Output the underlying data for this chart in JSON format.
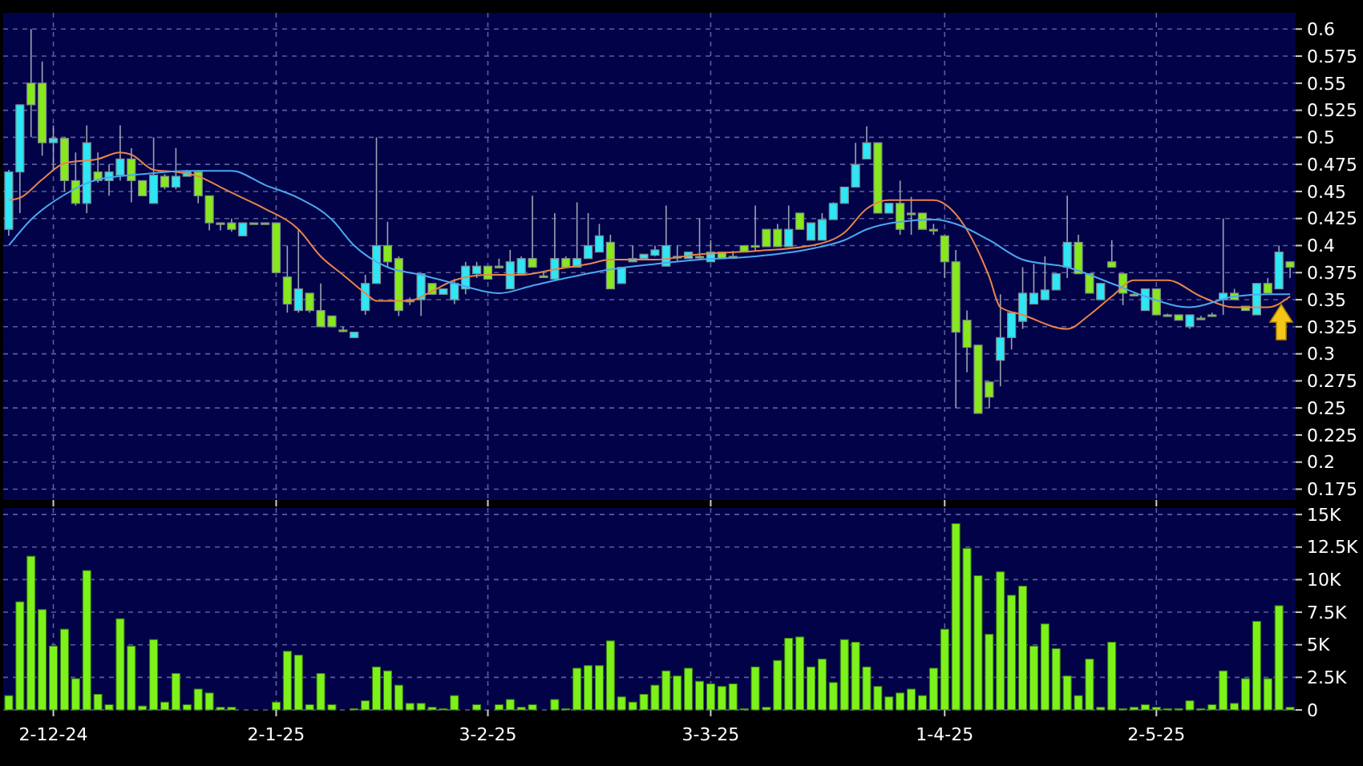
{
  "chart_data": [
    {
      "type": "candlestick",
      "tick_labels": "y",
      "grid": true,
      "categories": [
        null,
        null,
        null,
        null,
        null,
        null,
        null,
        null,
        null,
        null,
        null,
        null,
        null,
        null,
        null,
        null,
        null,
        null,
        null,
        null,
        null,
        null,
        null,
        null,
        null,
        null,
        null,
        null,
        null,
        null,
        null,
        null,
        null,
        null,
        null,
        null,
        null,
        null,
        null,
        null,
        null,
        null,
        null,
        null,
        null,
        null,
        null,
        null,
        null,
        null,
        null,
        null,
        null,
        null,
        null,
        null,
        null,
        null,
        null,
        null,
        null,
        null,
        null,
        null,
        null,
        null,
        null,
        null,
        null,
        null,
        null,
        null,
        null,
        null,
        null,
        null,
        null,
        null,
        null,
        null,
        null,
        null,
        null,
        null,
        null,
        null,
        null,
        null,
        null,
        null,
        null,
        null,
        null,
        null,
        null,
        null,
        null,
        null,
        null,
        null,
        null,
        null,
        null,
        null,
        null,
        null,
        null,
        null,
        null,
        null,
        null,
        null,
        null,
        null,
        null,
        null
      ],
      "ylim": [
        0.165,
        0.615
      ],
      "yticks": [
        0.175,
        0.2,
        0.225,
        0.25,
        0.275,
        0.3,
        0.325,
        0.35,
        0.375,
        0.4,
        0.425,
        0.45,
        0.475,
        0.5,
        0.525,
        0.55,
        0.575,
        0.6
      ],
      "series": [
        {
          "type": "candlestick",
          "ohlc": [
            [
              0.415,
              0.47,
              0.409,
              0.468
            ],
            [
              0.468,
              0.53,
              0.43,
              0.53
            ],
            [
              0.55,
              0.6,
              0.5,
              0.53
            ],
            [
              0.55,
              0.57,
              0.483,
              0.495
            ],
            [
              0.495,
              0.511,
              0.47,
              0.499
            ],
            [
              0.499,
              0.5,
              0.45,
              0.46
            ],
            [
              0.46,
              0.486,
              0.437,
              0.439
            ],
            [
              0.439,
              0.511,
              0.43,
              0.495
            ],
            [
              0.468,
              0.486,
              0.458,
              0.46
            ],
            [
              0.46,
              0.475,
              0.446,
              0.468
            ],
            [
              0.465,
              0.511,
              0.46,
              0.48
            ],
            [
              0.48,
              0.49,
              0.44,
              0.46
            ],
            [
              0.46,
              0.46,
              0.446,
              0.446
            ],
            [
              0.439,
              0.5,
              0.439,
              0.465
            ],
            [
              0.464,
              0.466,
              0.452,
              0.454
            ],
            [
              0.454,
              0.49,
              0.452,
              0.464
            ],
            [
              0.464,
              0.47,
              0.464,
              0.468
            ],
            [
              0.468,
              0.47,
              0.439,
              0.446
            ],
            [
              0.446,
              0.446,
              0.414,
              0.421
            ],
            [
              0.421,
              0.421,
              0.414,
              0.421
            ],
            [
              0.421,
              0.425,
              0.413,
              0.415
            ],
            [
              0.409,
              0.421,
              0.409,
              0.421
            ],
            [
              0.421,
              0.421,
              0.421,
              0.421
            ],
            [
              0.421,
              0.421,
              0.421,
              0.421
            ],
            [
              0.421,
              0.421,
              0.375,
              0.375
            ],
            [
              0.371,
              0.4,
              0.338,
              0.346
            ],
            [
              0.34,
              0.415,
              0.338,
              0.36
            ],
            [
              0.356,
              0.356,
              0.338,
              0.34
            ],
            [
              0.34,
              0.365,
              0.325,
              0.325
            ],
            [
              0.335,
              0.335,
              0.325,
              0.325
            ],
            [
              0.322,
              0.325,
              0.32,
              0.322
            ],
            [
              0.315,
              0.32,
              0.315,
              0.32
            ],
            [
              0.34,
              0.373,
              0.336,
              0.365
            ],
            [
              0.365,
              0.5,
              0.365,
              0.4
            ],
            [
              0.4,
              0.422,
              0.38,
              0.385
            ],
            [
              0.388,
              0.39,
              0.335,
              0.34
            ],
            [
              0.35,
              0.352,
              0.345,
              0.348
            ],
            [
              0.35,
              0.374,
              0.335,
              0.374
            ],
            [
              0.365,
              0.365,
              0.355,
              0.355
            ],
            [
              0.355,
              0.36,
              0.355,
              0.36
            ],
            [
              0.35,
              0.369,
              0.346,
              0.365
            ],
            [
              0.36,
              0.385,
              0.355,
              0.381
            ],
            [
              0.374,
              0.385,
              0.37,
              0.381
            ],
            [
              0.381,
              0.381,
              0.369,
              0.369
            ],
            [
              0.381,
              0.388,
              0.379,
              0.381
            ],
            [
              0.36,
              0.396,
              0.36,
              0.385
            ],
            [
              0.374,
              0.39,
              0.374,
              0.388
            ],
            [
              0.388,
              0.446,
              0.38,
              0.38
            ],
            [
              0.372,
              0.375,
              0.37,
              0.372
            ],
            [
              0.369,
              0.43,
              0.369,
              0.388
            ],
            [
              0.388,
              0.39,
              0.38,
              0.38
            ],
            [
              0.38,
              0.44,
              0.38,
              0.388
            ],
            [
              0.388,
              0.43,
              0.388,
              0.4
            ],
            [
              0.394,
              0.42,
              0.394,
              0.409
            ],
            [
              0.403,
              0.41,
              0.36,
              0.36
            ],
            [
              0.365,
              0.38,
              0.365,
              0.38
            ],
            [
              0.385,
              0.4,
              0.385,
              0.388
            ],
            [
              0.388,
              0.392,
              0.388,
              0.392
            ],
            [
              0.391,
              0.4,
              0.39,
              0.396
            ],
            [
              0.381,
              0.437,
              0.381,
              0.4
            ],
            [
              0.39,
              0.4,
              0.385,
              0.39
            ],
            [
              0.388,
              0.394,
              0.388,
              0.394
            ],
            [
              0.39,
              0.425,
              0.388,
              0.39
            ],
            [
              0.385,
              0.405,
              0.385,
              0.394
            ],
            [
              0.394,
              0.394,
              0.388,
              0.388
            ],
            [
              0.39,
              0.395,
              0.388,
              0.39
            ],
            [
              0.4,
              0.4,
              0.394,
              0.394
            ],
            [
              0.4,
              0.437,
              0.395,
              0.4
            ],
            [
              0.415,
              0.415,
              0.399,
              0.399
            ],
            [
              0.415,
              0.42,
              0.399,
              0.399
            ],
            [
              0.399,
              0.437,
              0.399,
              0.415
            ],
            [
              0.43,
              0.43,
              0.415,
              0.415
            ],
            [
              0.405,
              0.421,
              0.405,
              0.421
            ],
            [
              0.405,
              0.43,
              0.405,
              0.424
            ],
            [
              0.424,
              0.44,
              0.424,
              0.439
            ],
            [
              0.439,
              0.454,
              0.439,
              0.454
            ],
            [
              0.454,
              0.495,
              0.454,
              0.475
            ],
            [
              0.48,
              0.51,
              0.48,
              0.495
            ],
            [
              0.495,
              0.495,
              0.43,
              0.43
            ],
            [
              0.43,
              0.439,
              0.43,
              0.439
            ],
            [
              0.439,
              0.46,
              0.41,
              0.415
            ],
            [
              0.43,
              0.445,
              0.41,
              0.43
            ],
            [
              0.43,
              0.43,
              0.415,
              0.415
            ],
            [
              0.415,
              0.42,
              0.41,
              0.415
            ],
            [
              0.409,
              0.409,
              0.37,
              0.385
            ],
            [
              0.385,
              0.396,
              0.25,
              0.32
            ],
            [
              0.331,
              0.34,
              0.283,
              0.306
            ],
            [
              0.308,
              0.308,
              0.245,
              0.245
            ],
            [
              0.274,
              0.274,
              0.25,
              0.26
            ],
            [
              0.294,
              0.355,
              0.27,
              0.315
            ],
            [
              0.315,
              0.338,
              0.304,
              0.338
            ],
            [
              0.33,
              0.38,
              0.323,
              0.356
            ],
            [
              0.346,
              0.383,
              0.346,
              0.356
            ],
            [
              0.35,
              0.39,
              0.35,
              0.359
            ],
            [
              0.359,
              0.374,
              0.359,
              0.374
            ],
            [
              0.38,
              0.446,
              0.37,
              0.403
            ],
            [
              0.403,
              0.41,
              0.374,
              0.374
            ],
            [
              0.374,
              0.374,
              0.356,
              0.356
            ],
            [
              0.35,
              0.365,
              0.35,
              0.365
            ],
            [
              0.385,
              0.405,
              0.38,
              0.38
            ],
            [
              0.374,
              0.374,
              0.345,
              0.356
            ],
            [
              0.355,
              0.357,
              0.353,
              0.355
            ],
            [
              0.34,
              0.36,
              0.34,
              0.36
            ],
            [
              0.36,
              0.36,
              0.336,
              0.336
            ],
            [
              0.336,
              0.337,
              0.335,
              0.336
            ],
            [
              0.336,
              0.336,
              0.331,
              0.331
            ],
            [
              0.325,
              0.336,
              0.323,
              0.336
            ],
            [
              0.333,
              0.335,
              0.332,
              0.333
            ],
            [
              0.336,
              0.338,
              0.335,
              0.336
            ],
            [
              0.35,
              0.425,
              0.336,
              0.356
            ],
            [
              0.356,
              0.36,
              0.35,
              0.35
            ],
            [
              0.344,
              0.344,
              0.34,
              0.34
            ],
            [
              0.336,
              0.365,
              0.336,
              0.365
            ],
            [
              0.365,
              0.37,
              0.356,
              0.356
            ],
            [
              0.36,
              0.4,
              0.36,
              0.394
            ],
            [
              0.385,
              0.385,
              0.37,
              0.38
            ]
          ],
          "colors": [
            "#2ee6f5",
            "#2ee6f5",
            "#88e81e",
            "#88e81e",
            "#2ee6f5",
            "#88e81e",
            "#88e81e",
            "#2ee6f5",
            "#88e81e",
            "#2ee6f5",
            "#2ee6f5",
            "#88e81e",
            "#88e81e",
            "#2ee6f5",
            "#88e81e",
            "#2ee6f5",
            "#2ee6f5",
            "#88e81e",
            "#88e81e",
            "#88e81e",
            "#88e81e",
            "#2ee6f5",
            "#88e81e",
            "#88e81e",
            "#88e81e",
            "#88e81e",
            "#2ee6f5",
            "#88e81e",
            "#88e81e",
            "#88e81e",
            "#88e81e",
            "#2ee6f5",
            "#2ee6f5",
            "#2ee6f5",
            "#88e81e",
            "#88e81e",
            "#88e81e",
            "#2ee6f5",
            "#88e81e",
            "#2ee6f5",
            "#2ee6f5",
            "#2ee6f5",
            "#2ee6f5",
            "#88e81e",
            "#88e81e",
            "#2ee6f5",
            "#2ee6f5",
            "#88e81e",
            "#88e81e",
            "#2ee6f5",
            "#88e81e",
            "#2ee6f5",
            "#2ee6f5",
            "#2ee6f5",
            "#88e81e",
            "#2ee6f5",
            "#2ee6f5",
            "#2ee6f5",
            "#2ee6f5",
            "#2ee6f5",
            "#88e81e",
            "#2ee6f5",
            "#88e81e",
            "#2ee6f5",
            "#88e81e",
            "#88e81e",
            "#88e81e",
            "#88e81e",
            "#88e81e",
            "#88e81e",
            "#2ee6f5",
            "#88e81e",
            "#2ee6f5",
            "#2ee6f5",
            "#2ee6f5",
            "#2ee6f5",
            "#2ee6f5",
            "#2ee6f5",
            "#88e81e",
            "#2ee6f5",
            "#88e81e",
            "#88e81e",
            "#88e81e",
            "#88e81e",
            "#88e81e",
            "#88e81e",
            "#88e81e",
            "#88e81e",
            "#88e81e",
            "#2ee6f5",
            "#2ee6f5",
            "#2ee6f5",
            "#2ee6f5",
            "#2ee6f5",
            "#2ee6f5",
            "#2ee6f5",
            "#88e81e",
            "#88e81e",
            "#2ee6f5",
            "#88e81e",
            "#88e81e",
            "#88e81e",
            "#2ee6f5",
            "#88e81e",
            "#88e81e",
            "#88e81e",
            "#2ee6f5",
            "#88e81e",
            "#88e81e",
            "#2ee6f5",
            "#88e81e",
            "#88e81e",
            "#2ee6f5",
            "#88e81e",
            "#2ee6f5",
            "#88e81e"
          ]
        },
        {
          "type": "line",
          "color": "#e8844a",
          "values": [
            0.442,
            0.444,
            null,
            0.461,
            null,
            0.476,
            null,
            null,
            0.48,
            null,
            0.486,
            0.484,
            null,
            0.47,
            null,
            0.468,
            null,
            0.464,
            null,
            0.454,
            null,
            0.444,
            null,
            0.434,
            null,
            null,
            0.415,
            null,
            0.39,
            null,
            0.373,
            null,
            0.356,
            0.349,
            null,
            null,
            0.349,
            null,
            0.358,
            null,
            0.368,
            null,
            null,
            0.373,
            null,
            null,
            0.373,
            null,
            null,
            0.378,
            null,
            null,
            0.383,
            null,
            0.387,
            null,
            null,
            null,
            0.387,
            null,
            null,
            null,
            0.392,
            null,
            null,
            null,
            null,
            0.395,
            null,
            null,
            null,
            null,
            0.4,
            null,
            null,
            0.412,
            null,
            0.434,
            null,
            0.442,
            null,
            null,
            null,
            0.442,
            null,
            0.429,
            null,
            0.395,
            0.371,
            0.343,
            null,
            0.336,
            null,
            null,
            null,
            0.323,
            null,
            0.336,
            null,
            0.353,
            null,
            0.368,
            null,
            null,
            0.368,
            null,
            null,
            0.353,
            null,
            null,
            0.343,
            null,
            null,
            0.343,
            null,
            0.353
          ]
        },
        {
          "type": "line",
          "color": "#4aa8f0",
          "values": [
            0.4,
            null,
            0.424,
            null,
            null,
            0.447,
            null,
            null,
            0.461,
            null,
            null,
            null,
            0.466,
            null,
            null,
            null,
            0.469,
            null,
            null,
            null,
            0.469,
            null,
            null,
            0.456,
            null,
            null,
            0.444,
            null,
            null,
            0.424,
            null,
            0.4,
            null,
            null,
            0.38,
            null,
            null,
            0.373,
            null,
            null,
            0.365,
            null,
            null,
            null,
            0.356,
            null,
            null,
            0.363,
            null,
            null,
            0.37,
            null,
            null,
            null,
            0.378,
            null,
            null,
            null,
            0.383,
            null,
            null,
            null,
            0.387,
            null,
            null,
            null,
            null,
            0.39,
            null,
            null,
            null,
            null,
            0.397,
            null,
            null,
            0.405,
            null,
            0.415,
            null,
            null,
            0.422,
            null,
            null,
            0.424,
            null,
            0.42,
            null,
            null,
            0.405,
            null,
            null,
            0.387,
            null,
            null,
            null,
            0.38,
            null,
            null,
            null,
            0.365,
            null,
            null,
            0.353,
            null,
            null,
            null,
            0.343,
            null,
            null,
            null,
            0.353,
            null,
            null,
            0.355,
            null,
            0.355
          ]
        }
      ]
    },
    {
      "type": "bar",
      "grid": true,
      "color": "#7cf21a",
      "categories": [
        null,
        null,
        null,
        null,
        "2-12-24",
        null,
        null,
        null,
        null,
        null,
        null,
        null,
        null,
        null,
        null,
        null,
        null,
        null,
        null,
        null,
        null,
        null,
        null,
        null,
        "2-1-25",
        null,
        null,
        null,
        null,
        null,
        null,
        null,
        null,
        null,
        null,
        null,
        null,
        null,
        null,
        null,
        null,
        null,
        null,
        "3-2-25",
        null,
        null,
        null,
        null,
        null,
        null,
        null,
        null,
        null,
        null,
        null,
        null,
        null,
        null,
        null,
        null,
        null,
        null,
        null,
        "3-3-25",
        null,
        null,
        null,
        null,
        null,
        null,
        null,
        null,
        null,
        null,
        null,
        null,
        null,
        null,
        null,
        null,
        null,
        null,
        null,
        null,
        "1-4-25",
        null,
        null,
        null,
        null,
        null,
        null,
        null,
        null,
        null,
        null,
        null,
        null,
        null,
        null,
        null,
        null,
        null,
        null,
        "2-5-25",
        null,
        null,
        null,
        null,
        null,
        null,
        null,
        null,
        null,
        null,
        null,
        null
      ],
      "ylim": [
        0,
        15500
      ],
      "yticks": [
        0,
        {
          "value": 2500,
          "label": "2.5K"
        },
        {
          "value": 5000,
          "label": "5K"
        },
        {
          "value": 7500,
          "label": "7.5K"
        },
        {
          "value": 10000,
          "label": "10K"
        },
        {
          "value": 12500,
          "label": "12.5K"
        },
        {
          "value": 15000,
          "label": "15K"
        }
      ],
      "values": [
        1100,
        8300,
        11800,
        7700,
        4900,
        6200,
        2400,
        10700,
        1200,
        400,
        7000,
        4900,
        300,
        5400,
        600,
        2800,
        400,
        1600,
        1300,
        200,
        200,
        0,
        0,
        0,
        600,
        4500,
        4200,
        400,
        2800,
        400,
        0,
        100,
        700,
        3300,
        3000,
        1900,
        500,
        500,
        200,
        100,
        1100,
        0,
        400,
        0,
        400,
        800,
        200,
        400,
        0,
        800,
        100,
        3200,
        3400,
        3400,
        5300,
        1000,
        600,
        1200,
        1900,
        3000,
        2600,
        3200,
        2200,
        2000,
        1800,
        2000,
        100,
        3300,
        200,
        3800,
        5500,
        5600,
        3300,
        3900,
        2100,
        5400,
        5200,
        3300,
        1800,
        1000,
        1300,
        1600,
        1100,
        3200,
        6200,
        14300,
        12400,
        10300,
        5800,
        10600,
        8800,
        9500,
        4900,
        6600,
        4700,
        2600,
        1100,
        3900,
        200,
        5200,
        100,
        200,
        400,
        200,
        100,
        100,
        700,
        100,
        400,
        3000,
        500,
        2400,
        6800,
        2400,
        8000,
        200
      ]
    }
  ]
}
